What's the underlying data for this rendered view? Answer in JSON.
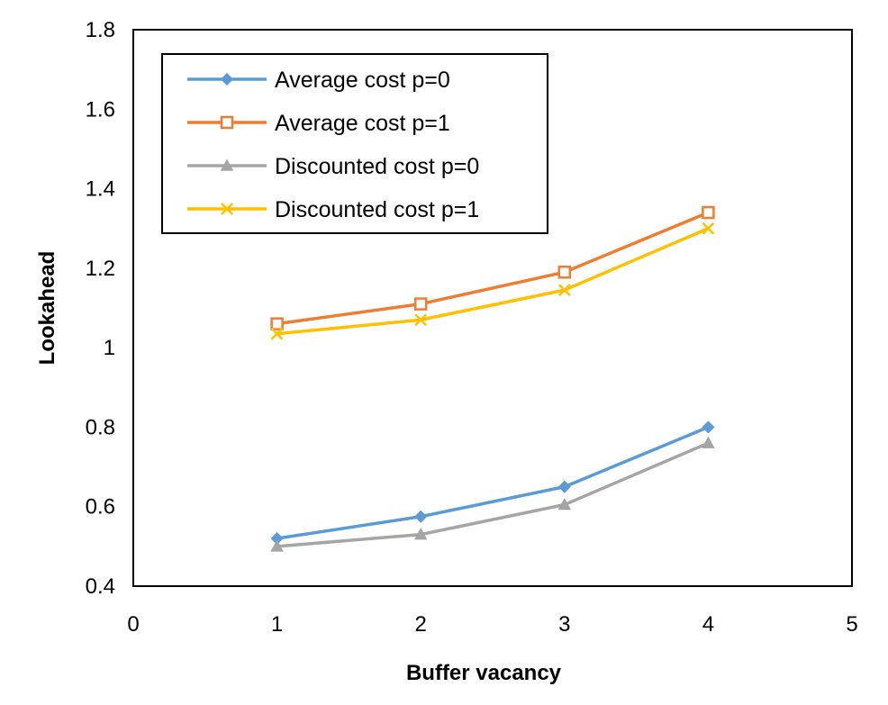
{
  "chart_data": {
    "type": "scatter",
    "xlabel": "Buffer vacancy",
    "ylabel": "Lookahead",
    "xlim": [
      0,
      5
    ],
    "ylim": [
      0.4,
      1.8
    ],
    "x_ticks": [
      "0",
      "1",
      "2",
      "3",
      "4",
      "5"
    ],
    "y_ticks": [
      "0.4",
      "0.6",
      "0.8",
      "1",
      "1.2",
      "1.4",
      "1.6",
      "1.8"
    ],
    "grid": false,
    "legend_position": "top-left",
    "x": [
      1,
      2,
      3,
      4
    ],
    "series": [
      {
        "name": "Average cost p=0",
        "values": [
          0.52,
          0.575,
          0.65,
          0.8
        ],
        "color": "#5b9bd5",
        "marker": "diamond"
      },
      {
        "name": "Average cost p=1",
        "values": [
          1.06,
          1.11,
          1.19,
          1.34
        ],
        "color": "#ed7d31",
        "marker": "square"
      },
      {
        "name": "Discounted cost p=0",
        "values": [
          0.5,
          0.53,
          0.605,
          0.76
        ],
        "color": "#a5a5a5",
        "marker": "triangle"
      },
      {
        "name": "Discounted cost p=1",
        "values": [
          1.035,
          1.07,
          1.145,
          1.3
        ],
        "color": "#ffc000",
        "marker": "x"
      }
    ]
  }
}
